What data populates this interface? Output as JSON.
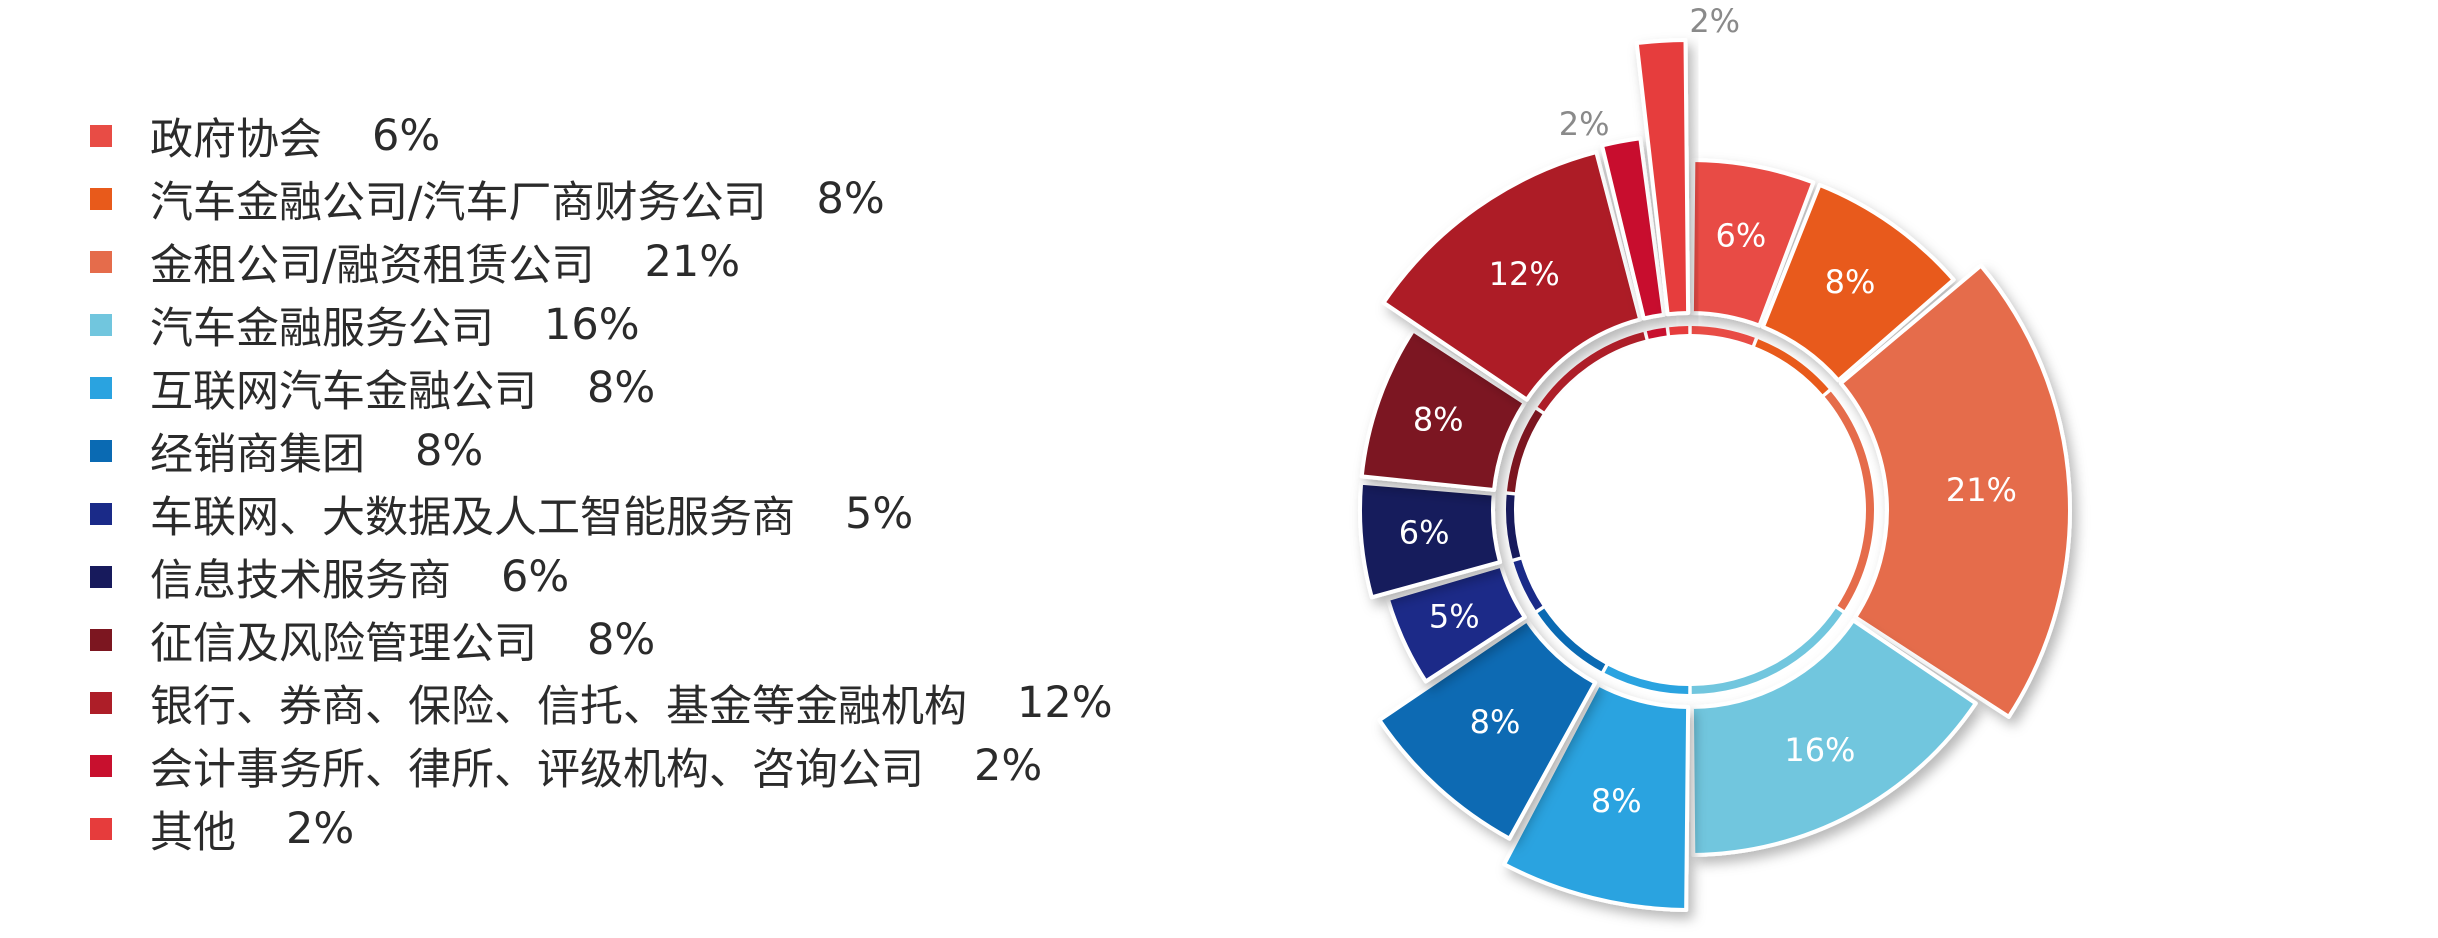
{
  "chart_data": {
    "type": "pie",
    "variant": "donut-exploded",
    "value_format": "percent",
    "legend_position": "left",
    "slices": [
      {
        "label": "政府协会",
        "value": 6,
        "color": "#e84c45"
      },
      {
        "label": "汽车金融公司/汽车厂商财务公司",
        "value": 8,
        "color": "#e85a1b"
      },
      {
        "label": "金租公司/融资租赁公司",
        "value": 21,
        "color": "#e56c4b"
      },
      {
        "label": "汽车金融服务公司",
        "value": 16,
        "color": "#71c6de"
      },
      {
        "label": "互联网汽车金融公司",
        "value": 8,
        "color": "#2aa3e0"
      },
      {
        "label": "经销商集团",
        "value": 8,
        "color": "#0a6ab3"
      },
      {
        "label": "车联网、大数据及人工智能服务商",
        "value": 5,
        "color": "#1a2a88"
      },
      {
        "label": "信息技术服务商",
        "value": 6,
        "color": "#171a5c"
      },
      {
        "label": "征信及风险管理公司",
        "value": 8,
        "color": "#7c1620"
      },
      {
        "label": "银行、券商、保险、信托、基金等金融机构",
        "value": 12,
        "color": "#ad1e28"
      },
      {
        "label": "会计事务所、律所、评级机构、咨询公司",
        "value": 2,
        "color": "#c8102e"
      },
      {
        "label": "其他",
        "value": 2,
        "color": "#e63c3c"
      }
    ]
  }
}
